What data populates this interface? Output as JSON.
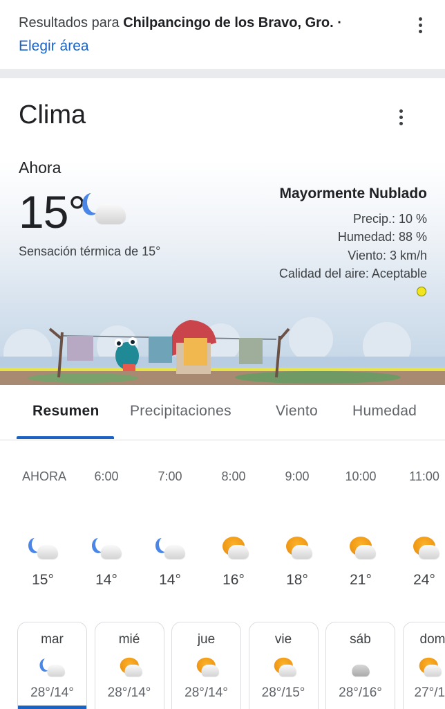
{
  "header": {
    "results_prefix": "Resultados para",
    "location": "Chilpancingo de los Bravo, Gro. ·",
    "choose_area": "Elegir área"
  },
  "weather": {
    "title": "Clima",
    "now_label": "Ahora",
    "temperature": "15°",
    "current_icon": "moon-cloud",
    "feels_like": "Sensación térmica de 15°",
    "condition": "Mayormente Nublado",
    "precip": "Precip.: 10 %",
    "humidity": "Humedad: 88 %",
    "wind": "Viento: 3 km/h",
    "air_quality": "Calidad del aire: Aceptable",
    "air_quality_color": "#f0e51f"
  },
  "tabs": [
    {
      "label": "Resumen",
      "active": true
    },
    {
      "label": "Precipitaciones"
    },
    {
      "label": "Viento"
    },
    {
      "label": "Humedad"
    }
  ],
  "hourly": [
    {
      "time": "AHORA",
      "icon": "moon-cloud",
      "temp": "15°"
    },
    {
      "time": "6:00",
      "icon": "moon-cloud",
      "temp": "14°"
    },
    {
      "time": "7:00",
      "icon": "moon-cloud",
      "temp": "14°"
    },
    {
      "time": "8:00",
      "icon": "sun-cloud",
      "temp": "16°"
    },
    {
      "time": "9:00",
      "icon": "sun-cloud",
      "temp": "18°"
    },
    {
      "time": "10:00",
      "icon": "sun-cloud",
      "temp": "21°"
    },
    {
      "time": "11:00",
      "icon": "sun-cloud",
      "temp": "24°"
    }
  ],
  "daily": [
    {
      "day": "mar",
      "icon": "moon-cloud",
      "temps": "28°/14°",
      "selected": true
    },
    {
      "day": "mié",
      "icon": "sun-cloud",
      "temps": "28°/14°"
    },
    {
      "day": "jue",
      "icon": "sun-cloud",
      "temps": "28°/14°"
    },
    {
      "day": "vie",
      "icon": "sun-cloud",
      "temps": "28°/15°"
    },
    {
      "day": "sáb",
      "icon": "cloud",
      "temps": "28°/16°"
    },
    {
      "day": "dom",
      "icon": "sun-cloud",
      "temps": "27°/1"
    }
  ],
  "colors": {
    "accent": "#1a62c4"
  }
}
